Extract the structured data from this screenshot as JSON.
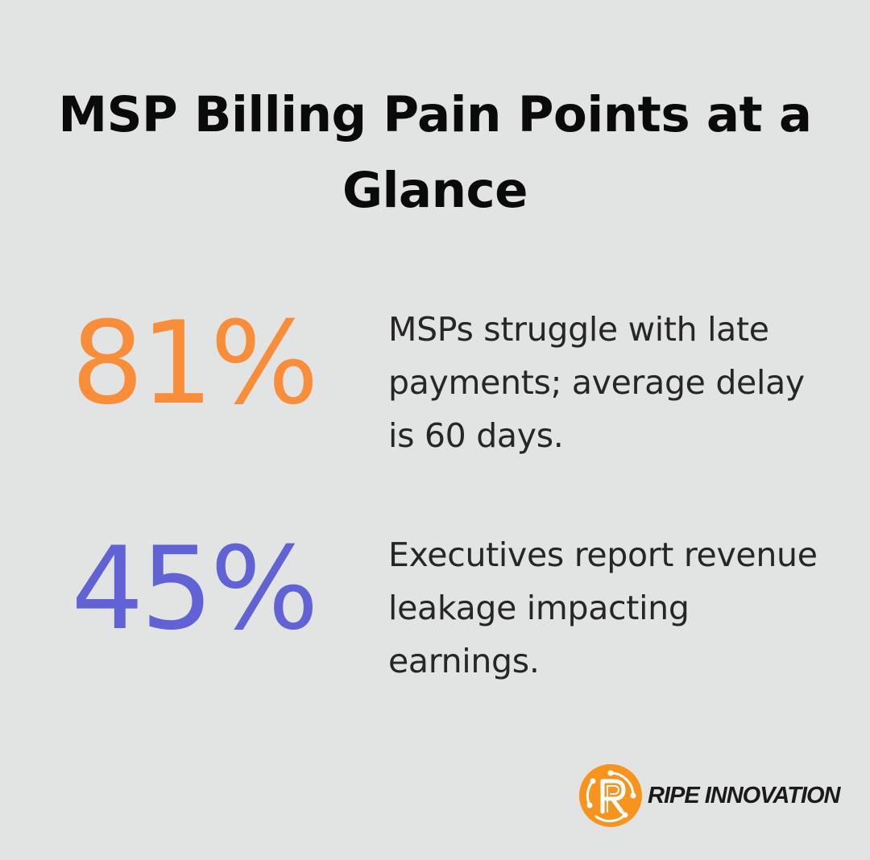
{
  "title": "MSP Billing Pain Points at a Glance",
  "stats": [
    {
      "value": "81%",
      "description": "MSPs struggle with late payments; average delay is 60 days.",
      "color": "#f88d3a"
    },
    {
      "value": "45%",
      "description": "Executives report revenue leakage impacting earnings.",
      "color": "#6162d3"
    }
  ],
  "brand": {
    "name": "RIPE INNOVATION",
    "accent": "#f7941d",
    "icon": "ripe-innovation-logo-icon"
  },
  "colors": {
    "background": "#e2e3e3"
  }
}
